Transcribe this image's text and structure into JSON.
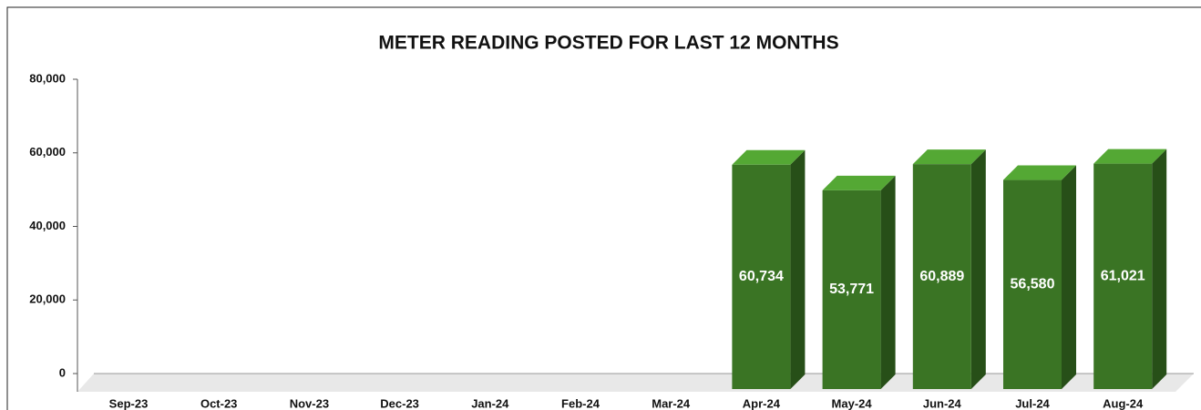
{
  "chart_data": {
    "type": "bar3d",
    "title": "METER READING POSTED FOR LAST 12 MONTHS",
    "categories": [
      "Sep-23",
      "Oct-23",
      "Nov-23",
      "Dec-23",
      "Jan-24",
      "Feb-24",
      "Mar-24",
      "Apr-24",
      "May-24",
      "Jun-24",
      "Jul-24",
      "Aug-24"
    ],
    "values": [
      null,
      null,
      null,
      null,
      null,
      null,
      null,
      60734,
      53771,
      60889,
      56580,
      61021
    ],
    "value_labels": [
      null,
      null,
      null,
      null,
      null,
      null,
      null,
      "60,734",
      "53,771",
      "60,889",
      "56,580",
      "61,021"
    ],
    "color": "#3a7424",
    "ylim": [
      0,
      80000
    ],
    "yticks": [
      0,
      {
        "value": 20000,
        "label": "20,000"
      },
      {
        "value": 40000,
        "label": "40,000"
      },
      {
        "value": 60000,
        "label": "60,000"
      },
      {
        "value": 80000,
        "label": "80,000"
      }
    ]
  }
}
